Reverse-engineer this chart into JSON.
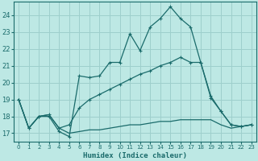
{
  "xlabel": "Humidex (Indice chaleur)",
  "xlim": [
    -0.5,
    23.5
  ],
  "ylim": [
    16.5,
    24.8
  ],
  "yticks": [
    17,
    18,
    19,
    20,
    21,
    22,
    23,
    24
  ],
  "xticks": [
    0,
    1,
    2,
    3,
    4,
    5,
    6,
    7,
    8,
    9,
    10,
    11,
    12,
    13,
    14,
    15,
    16,
    17,
    18,
    19,
    20,
    21,
    22,
    23
  ],
  "bg_color": "#bde8e4",
  "line_color": "#1a6b6b",
  "grid_color": "#9ecfcc",
  "line1_y": [
    19.0,
    17.3,
    18.0,
    18.0,
    17.1,
    16.8,
    20.4,
    20.3,
    20.4,
    21.2,
    21.2,
    22.9,
    21.9,
    23.3,
    23.8,
    24.5,
    23.8,
    23.3,
    21.2,
    19.1,
    18.3,
    17.5,
    17.4,
    17.5
  ],
  "line2_y": [
    19.0,
    17.3,
    18.0,
    18.1,
    17.3,
    17.5,
    18.5,
    19.0,
    19.3,
    19.6,
    19.9,
    20.2,
    20.5,
    20.7,
    21.0,
    21.2,
    21.5,
    21.2,
    21.2,
    19.2,
    18.3,
    17.5,
    17.4,
    17.5
  ],
  "line3_y": [
    19.0,
    17.3,
    18.0,
    18.1,
    17.3,
    17.0,
    17.1,
    17.2,
    17.2,
    17.3,
    17.4,
    17.5,
    17.5,
    17.6,
    17.7,
    17.7,
    17.8,
    17.8,
    17.8,
    17.8,
    17.5,
    17.3,
    17.4,
    17.5
  ]
}
